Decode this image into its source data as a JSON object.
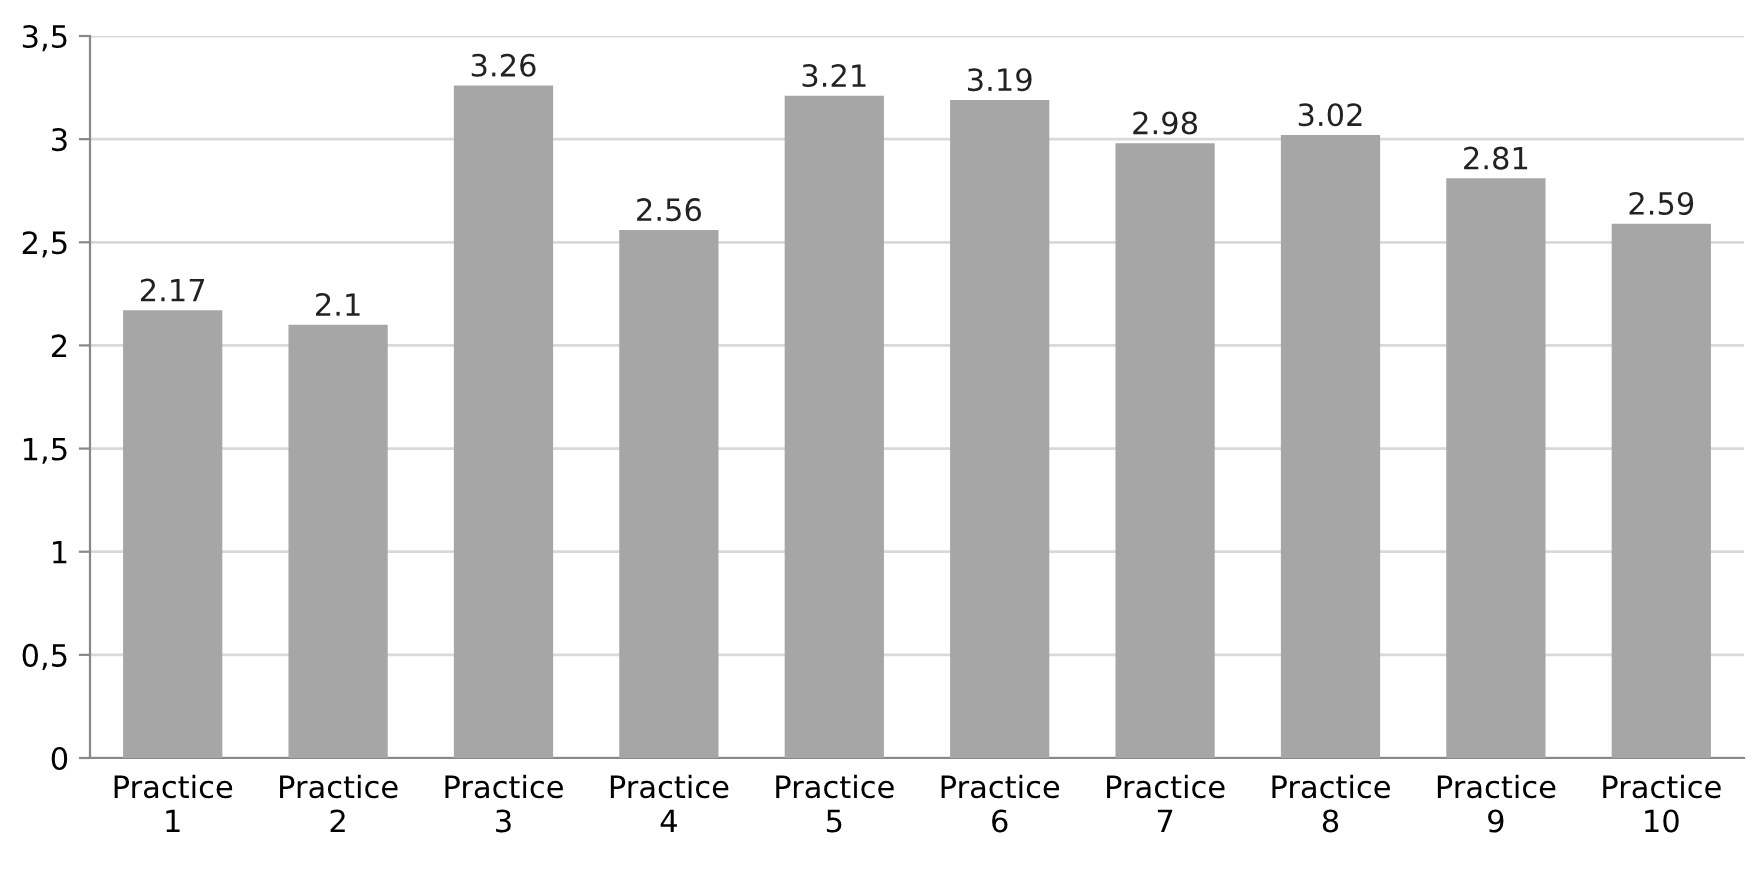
{
  "chart_data": {
    "type": "bar",
    "categories": [
      "Practice\n1",
      "Practice\n2",
      "Practice\n3",
      "Practice\n4",
      "Practice\n5",
      "Practice\n6",
      "Practice\n7",
      "Practice\n8",
      "Practice\n9",
      "Practice\n10"
    ],
    "values": [
      2.17,
      2.1,
      3.26,
      2.56,
      3.21,
      3.19,
      2.98,
      3.02,
      2.81,
      2.59
    ],
    "color": "#a6a6a6",
    "ylim": [
      0,
      3.5
    ],
    "yticks": [
      0,
      {
        "value": 0.5,
        "label": "0,5"
      },
      1,
      {
        "value": 1.5,
        "label": "1,5"
      },
      2,
      {
        "value": 2.5,
        "label": "2,5"
      },
      3,
      {
        "value": 3.5,
        "label": "3,5"
      }
    ],
    "grid": "y",
    "data_labels": true,
    "legend": false
  }
}
